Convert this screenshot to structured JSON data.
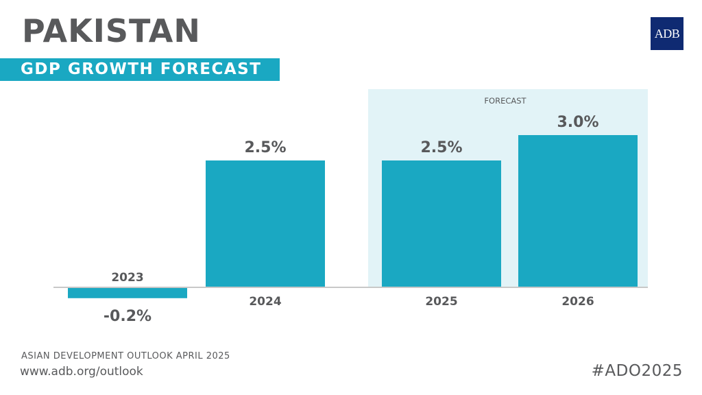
{
  "header": {
    "title": "PAKISTAN",
    "subtitle": "GDP GROWTH FORECAST",
    "logo_text": "ADB"
  },
  "footer": {
    "source": "ASIAN DEVELOPMENT OUTLOOK APRIL 2025",
    "url": "www.adb.org/outlook",
    "hashtag": "#ADO2025"
  },
  "colors": {
    "bar": "#1aa8c2",
    "forecast_shade": "#e2f3f7",
    "text": "#58595b",
    "logo": "#0f2a72"
  },
  "chart_data": {
    "type": "bar",
    "title": "GDP GROWTH FORECAST",
    "xlabel": "",
    "ylabel": "",
    "categories": [
      "2023",
      "2024",
      "2025",
      "2026"
    ],
    "values": [
      -0.2,
      2.5,
      2.5,
      3.0
    ],
    "data_labels": [
      "-0.2%",
      "2.5%",
      "2.5%",
      "3.0%"
    ],
    "forecast_categories": [
      "2025",
      "2026"
    ],
    "forecast_label": "FORECAST",
    "grid": false,
    "legend": "none",
    "ylim": [
      -0.2,
      3.0
    ]
  }
}
